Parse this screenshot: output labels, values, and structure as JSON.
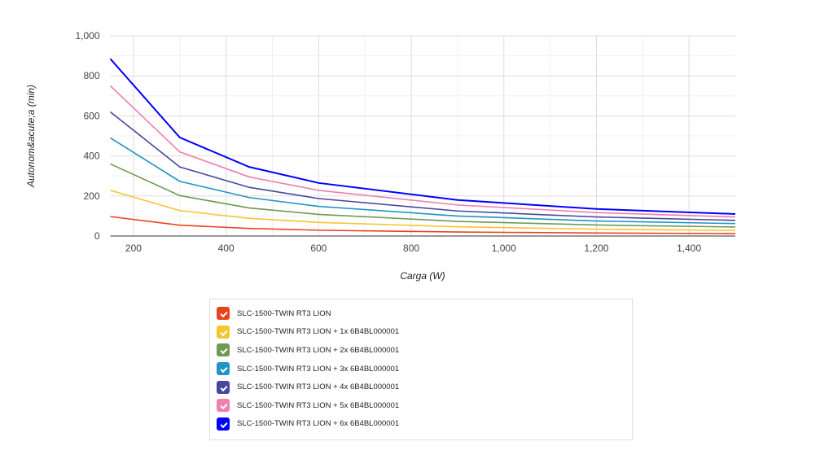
{
  "chart_data": {
    "type": "line",
    "title": "",
    "xlabel": "Carga (W)",
    "ylabel": "Autonom&acute;a (min)",
    "xlim": [
      150,
      1500
    ],
    "ylim": [
      0,
      1000
    ],
    "xticks": [
      200,
      400,
      600,
      800,
      1000,
      1200,
      1400
    ],
    "xtick_labels": [
      "200",
      "400",
      "600",
      "800",
      "1,000",
      "1,200",
      "1,400"
    ],
    "yticks": [
      0,
      200,
      400,
      600,
      800,
      1000
    ],
    "ytick_labels": [
      "0",
      "200",
      "400",
      "600",
      "800",
      "1,000"
    ],
    "grid": true,
    "legend_position": "bottom",
    "x": [
      150,
      300,
      450,
      600,
      900,
      1200,
      1500
    ],
    "series": [
      {
        "name": "SLC-1500-TWIN RT3 LION",
        "color": "#e8431e",
        "values": [
          97,
          54,
          38,
          29,
          20,
          15,
          12
        ]
      },
      {
        "name": "SLC-1500-TWIN RT3 LION + 1x 6B4BL000001",
        "color": "#f5c530",
        "values": [
          228,
          127,
          88,
          68,
          46,
          34,
          28
        ]
      },
      {
        "name": "SLC-1500-TWIN RT3 LION + 2x 6B4BL000001",
        "color": "#6e9a54",
        "values": [
          360,
          202,
          140,
          108,
          73,
          55,
          45
        ]
      },
      {
        "name": "SLC-1500-TWIN RT3 LION + 3x 6B4BL000001",
        "color": "#1f95c6",
        "values": [
          490,
          273,
          192,
          148,
          100,
          75,
          62
        ]
      },
      {
        "name": "SLC-1500-TWIN RT3 LION + 4x 6B4BL000001",
        "color": "#46479c",
        "values": [
          620,
          345,
          243,
          187,
          125,
          95,
          78
        ]
      },
      {
        "name": "SLC-1500-TWIN RT3 LION + 5x 6B4BL000001",
        "color": "#ee7fae",
        "values": [
          750,
          420,
          295,
          228,
          155,
          117,
          95
        ]
      },
      {
        "name": "SLC-1500-TWIN RT3 LION + 6x 6B4BL000001",
        "color": "#0000ff",
        "values": [
          885,
          492,
          345,
          265,
          180,
          135,
          110
        ]
      }
    ]
  }
}
